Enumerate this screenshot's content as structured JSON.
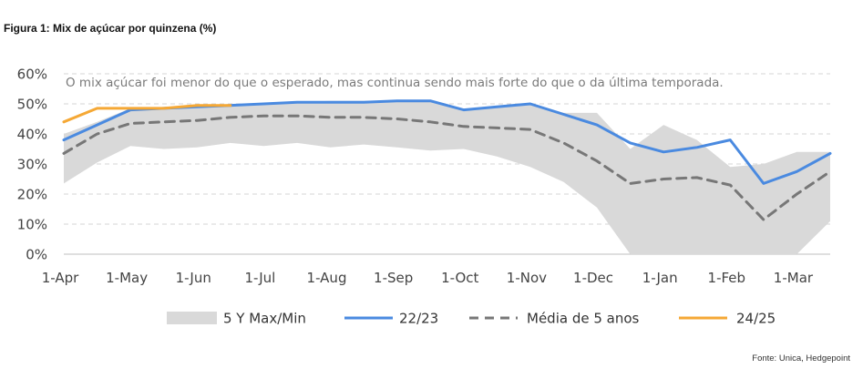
{
  "figure_title": "Figura 1: Mix de açúcar por quinzena (%)",
  "source": "Fonte: Unica, Hedgepoint",
  "chart_data": {
    "type": "line",
    "title": "",
    "annotation": "O mix açúcar foi menor do que o esperado, mas continua sendo mais forte do que o da última temporada.",
    "xlabel": "",
    "ylabel": "",
    "ylim": [
      0,
      60
    ],
    "y_ticks": [
      "0%",
      "10%",
      "20%",
      "30%",
      "40%",
      "50%",
      "60%"
    ],
    "x_tick_labels": [
      "1-Apr",
      "1-May",
      "1-Jun",
      "1-Jul",
      "1-Aug",
      "1-Sep",
      "1-Oct",
      "1-Nov",
      "1-Dec",
      "1-Jan",
      "1-Feb",
      "1-Mar"
    ],
    "grid": "horizontal dashed",
    "legend_position": "bottom",
    "periods": 24,
    "series": [
      {
        "name": "5 Y Max/Min",
        "kind": "band",
        "color": "#d9d9d9",
        "max": [
          40,
          44,
          48.5,
          48.5,
          49,
          49.5,
          50,
          50.5,
          51,
          51,
          51,
          51,
          48,
          49,
          50,
          47,
          47,
          35,
          43,
          38,
          29,
          30,
          34,
          34
        ],
        "min": [
          23.5,
          30.5,
          36,
          35,
          35.5,
          37,
          36,
          37,
          35.5,
          36.5,
          35.5,
          34.5,
          35,
          32.5,
          29,
          24,
          15.5,
          0,
          0,
          0,
          0,
          0,
          0,
          11
        ]
      },
      {
        "name": "22/23",
        "kind": "line",
        "color": "#4a8ae0",
        "values": [
          38,
          43,
          48,
          48.5,
          49,
          49.5,
          50,
          50.5,
          50.5,
          50.5,
          51,
          51,
          48,
          49,
          50,
          46.5,
          43,
          37,
          34,
          35.5,
          38,
          23.5,
          27.5,
          33.5
        ]
      },
      {
        "name": "Média de 5 anos",
        "kind": "dashed",
        "color": "#777777",
        "values": [
          33.5,
          40,
          43.5,
          44,
          44.5,
          45.5,
          46,
          46,
          45.5,
          45.5,
          45,
          44,
          42.5,
          42,
          41.5,
          37,
          31,
          23.5,
          25,
          25.5,
          23,
          11.5,
          20,
          27.5
        ]
      },
      {
        "name": "24/25",
        "kind": "line",
        "color": "#f5a835",
        "values": [
          44,
          48.5,
          48.5,
          48.5,
          49.5,
          49.5
        ]
      }
    ]
  }
}
